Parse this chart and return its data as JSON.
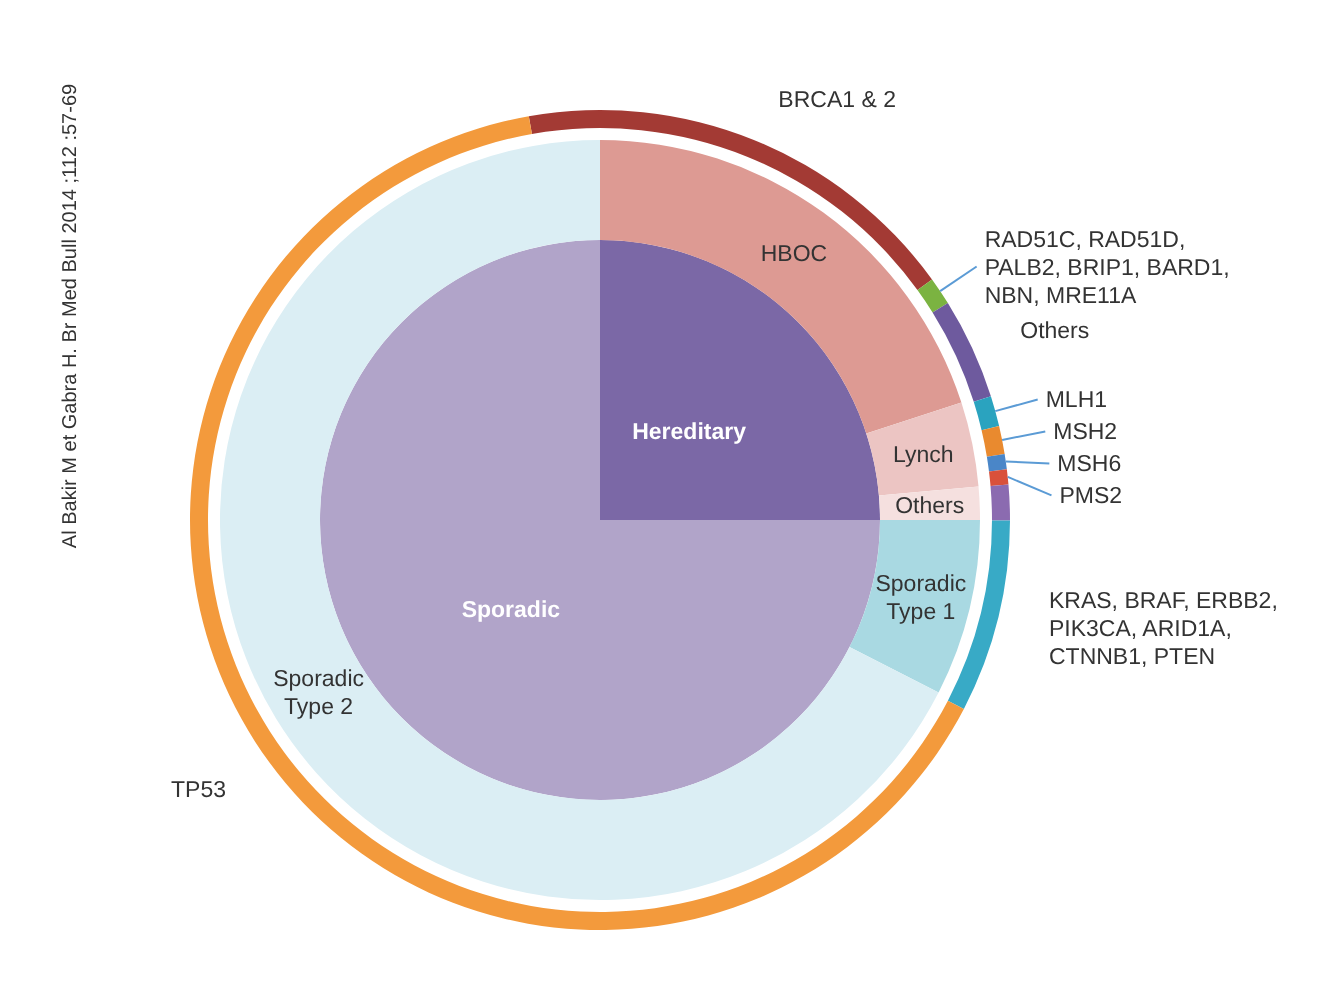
{
  "chart_data": [
    {
      "type": "pie",
      "categories": [
        "Hereditary",
        "Sporadic"
      ],
      "values": [
        25,
        75
      ],
      "colors": [
        "#7b68a6",
        "#b1a4c9"
      ],
      "annotations": [
        "Al Bakir M et Gabra H. Br Med Bull 2014 ;112 :57-69"
      ]
    },
    {
      "type": "donut",
      "categories": [
        "HBOC",
        "Lynch",
        "Others",
        "Sporadic Type 1",
        "Sporadic Type 2"
      ],
      "values": [
        20,
        3.6,
        1.4,
        7.5,
        67.5
      ],
      "colors": [
        "#dd9a93",
        "#ecc5c3",
        "#f5e0df",
        "#a9d9e2",
        "#dbeef4"
      ]
    },
    {
      "type": "donut",
      "categories": [
        "BRCA1 & 2",
        "RAD51C, RAD51D, PALB2, BRIP1, BARD1, NBN, MRE11A",
        "Others",
        "MLH1",
        "MSH2",
        "MSH6",
        "PMS2",
        null,
        "KRAS, BRAF, ERBB2, PIK3CA, ARID1A, CTNNB1, PTEN",
        "TP53"
      ],
      "values": [
        17.8,
        1.1,
        4,
        1.2,
        1.1,
        0.6,
        0.6,
        1.4,
        7.6,
        64.6
      ],
      "colors": [
        "#a33a34",
        "#7bb341",
        "#6e5a9e",
        "#2aa3bf",
        "#e98a2f",
        "#4a86c8",
        "#d9513a",
        "#8b6bb0",
        "#38aac6",
        "#f39a3c"
      ]
    }
  ]
}
